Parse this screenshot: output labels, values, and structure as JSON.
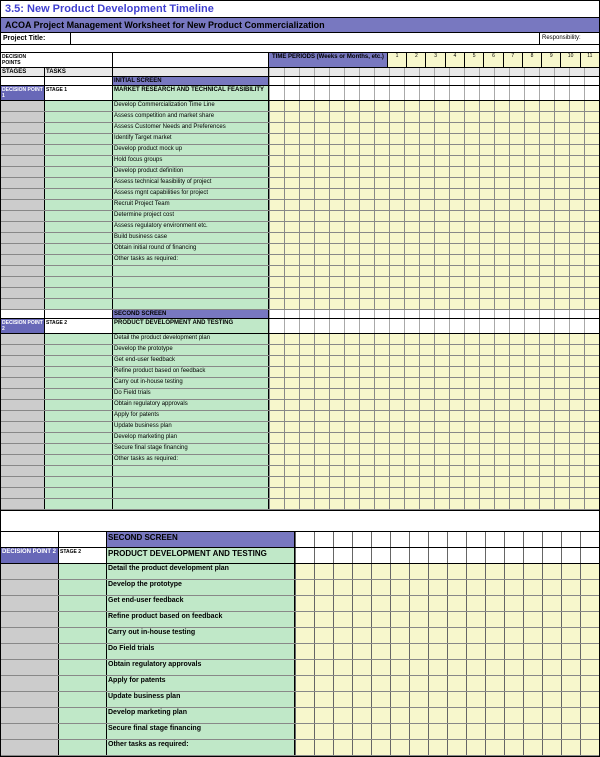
{
  "title": "3.5:   New Product Development Timeline",
  "subtitle": "ACOA Project Management Worksheet for New Product Commercialization",
  "project_title_label": "Project Title:",
  "responsibility_label": "Responsibility:",
  "decision_points_label": "DECISION POINTS",
  "time_periods_label": "TIME PERIODS  (Weeks or Months, etc.)",
  "stages_label": "STAGES",
  "tasks_label": "TASKS",
  "period_numbers": [
    "1",
    "2",
    "3",
    "4",
    "5",
    "6",
    "7",
    "8",
    "9",
    "10",
    "11"
  ],
  "timeline_cols": 22,
  "colors": {
    "purple": "#7878c0",
    "darkpurple": "#6868b8",
    "green": "#c0e8c8",
    "yellow": "#f7f7cc",
    "gray": "#cccccc",
    "title_color": "#4040d0"
  },
  "sections": [
    {
      "screen_label": "INITIAL SCREEN",
      "decision_label": "DECISION POINT 1",
      "stage_label": "STAGE 1",
      "heading": "MARKET RESEARCH AND TECHNICAL FEASIBILITY",
      "tasks": [
        "Develop Commercialization Time Line",
        "Assess competition and market share",
        "Assess Customer Needs and Preferences",
        "Identify Target market",
        "Develop product mock up",
        "Hold focus groups",
        "Develop product definition",
        "Assess technical feasibility of project",
        "Assess mgnt capabilities for project",
        "Recruit Project Team",
        "Determine project cost",
        "Assess regulatory environment etc.",
        "Build business case",
        "Obtain initial round of financing",
        "Other tasks as required:"
      ],
      "trailing_blanks": 4
    },
    {
      "screen_label": "SECOND SCREEN",
      "decision_label": "DECISION POINT 2",
      "stage_label": "STAGE 2",
      "heading": "PRODUCT DEVELOPMENT AND TESTING",
      "tasks": [
        "Detail the product development plan",
        "Develop the prototype",
        "Get end-user feedback",
        "Refine product based on feedback",
        "Carry out in-house testing",
        "Do Field trials",
        "Obtain regulatory approvals",
        "Apply for patents",
        "Update business plan",
        "Develop marketing plan",
        "Secure final stage financing",
        "Other tasks as required:"
      ],
      "trailing_blanks": 4
    }
  ],
  "zoom_section": {
    "screen_label": "SECOND SCREEN",
    "decision_label": "DECISION POINT 2",
    "stage_label": "STAGE 2",
    "heading": "PRODUCT DEVELOPMENT AND TESTING",
    "tasks": [
      "Detail the product development plan",
      "Develop the prototype",
      "Get end-user feedback",
      "Refine product based on feedback",
      "Carry out in-house testing",
      "Do Field trials",
      "Obtain regulatory approvals",
      "Apply for patents",
      "Update business plan",
      "Develop marketing plan",
      "Secure final stage financing",
      "Other tasks as required:"
    ],
    "zoom_cols": 16
  }
}
